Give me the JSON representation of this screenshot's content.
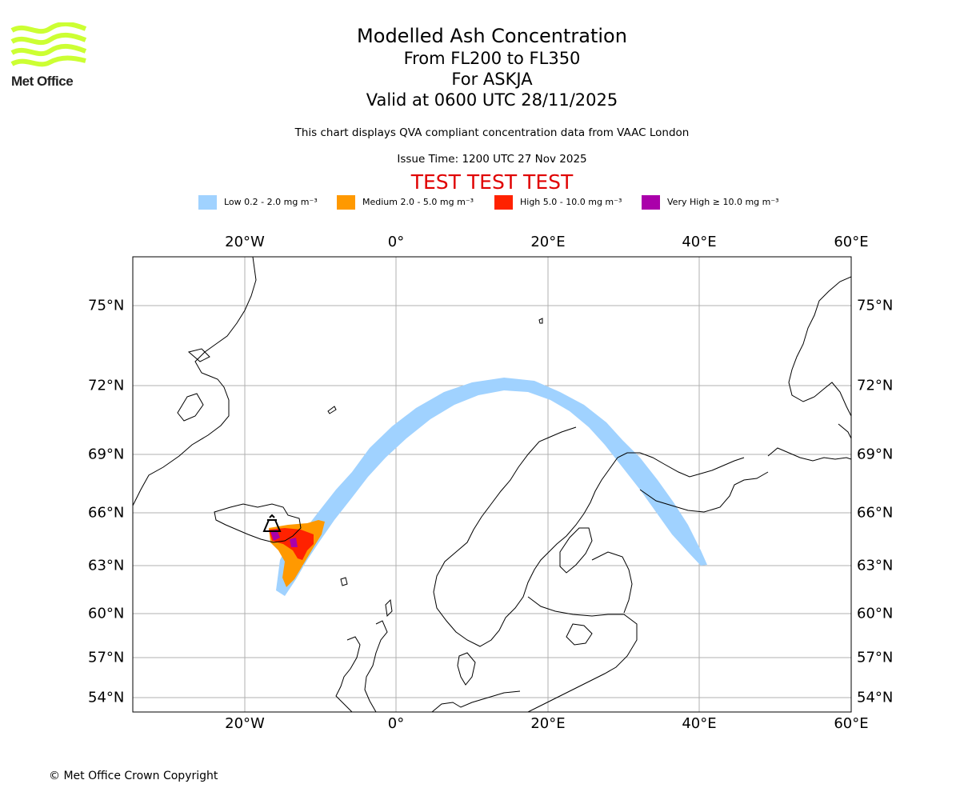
{
  "logo": {
    "text": "Met Office",
    "stripe_color": "#ccff33"
  },
  "title": {
    "line1": "Modelled Ash Concentration",
    "line2": "From FL200 to FL350",
    "line3": "For ASKJA",
    "line4": "Valid at 0600 UTC 28/11/2025"
  },
  "note": "This chart displays QVA compliant concentration data from VAAC London",
  "issue_time": "Issue Time: 1200 UTC 27 Nov 2025",
  "test_banner": "TEST TEST TEST",
  "legend": {
    "low": {
      "label": "Low 0.2 - 2.0 mg m⁻³",
      "color": "#a0d2ff"
    },
    "medium": {
      "label": "Medium 2.0 - 5.0 mg m⁻³",
      "color": "#ff9900"
    },
    "high": {
      "label": "High 5.0 - 10.0 mg m⁻³",
      "color": "#ff2200"
    },
    "very_high": {
      "label": "Very High  ≥  10.0 mg m⁻³",
      "color": "#aa00aa"
    }
  },
  "map": {
    "lon_labels": [
      "20°W",
      "0°",
      "20°E",
      "40°E",
      "60°E"
    ],
    "lat_labels": [
      "75°N",
      "72°N",
      "69°N",
      "66°N",
      "63°N",
      "60°N",
      "57°N",
      "54°N"
    ],
    "volcano_icon": "volcano-icon"
  },
  "copyright": "© Met Office Crown Copyright"
}
